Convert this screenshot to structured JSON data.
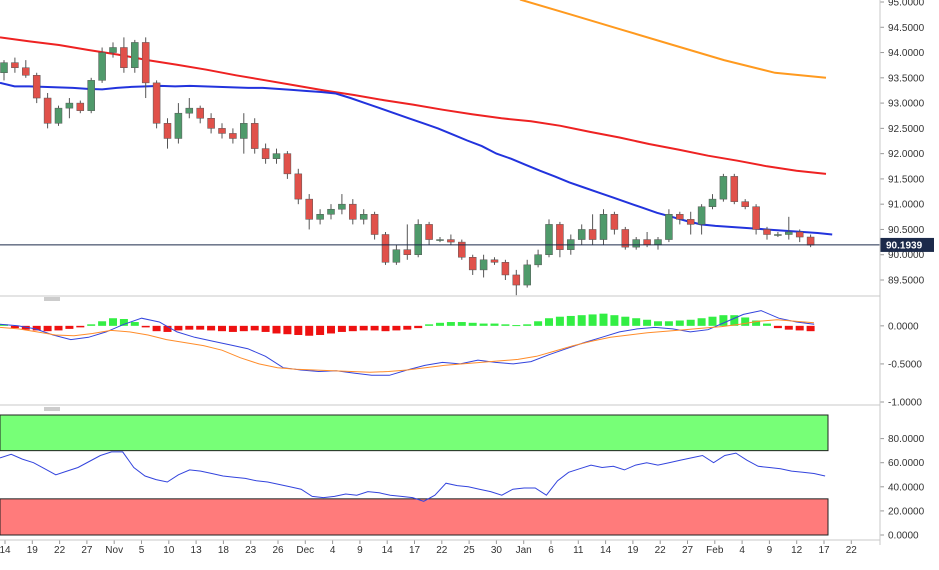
{
  "chart_data": [
    {
      "type": "candlestick",
      "name": "price",
      "ylim": [
        89.1,
        95.0
      ],
      "yticks": [
        "95.0000",
        "94.5000",
        "94.0000",
        "93.5000",
        "93.0000",
        "92.5000",
        "92.0000",
        "91.5000",
        "91.0000",
        "90.5000",
        "90.0000",
        "89.5000"
      ],
      "ytick_values": [
        95.0,
        94.5,
        94.0,
        93.5,
        93.0,
        92.5,
        92.0,
        91.5,
        91.0,
        90.5,
        90.0,
        89.5
      ],
      "current_price": 90.1939,
      "current_price_label": "90.1939",
      "candles": [
        [
          93.6,
          93.85,
          93.45,
          93.8
        ],
        [
          93.8,
          93.9,
          93.6,
          93.7
        ],
        [
          93.7,
          93.85,
          93.5,
          93.55
        ],
        [
          93.55,
          93.6,
          93.0,
          93.1
        ],
        [
          93.1,
          93.2,
          92.5,
          92.6
        ],
        [
          92.6,
          92.95,
          92.55,
          92.9
        ],
        [
          92.9,
          93.1,
          92.7,
          93.0
        ],
        [
          93.0,
          93.05,
          92.8,
          92.85
        ],
        [
          92.85,
          93.5,
          92.8,
          93.45
        ],
        [
          93.45,
          94.1,
          93.4,
          94.0
        ],
        [
          94.0,
          94.2,
          93.9,
          94.1
        ],
        [
          94.1,
          94.3,
          93.6,
          93.7
        ],
        [
          93.7,
          94.25,
          93.6,
          94.2
        ],
        [
          94.2,
          94.3,
          93.1,
          93.4
        ],
        [
          93.4,
          93.45,
          92.5,
          92.6
        ],
        [
          92.6,
          92.7,
          92.1,
          92.3
        ],
        [
          92.3,
          93.0,
          92.2,
          92.8
        ],
        [
          92.8,
          93.1,
          92.7,
          92.9
        ],
        [
          92.9,
          92.95,
          92.6,
          92.7
        ],
        [
          92.7,
          92.8,
          92.4,
          92.5
        ],
        [
          92.5,
          92.6,
          92.3,
          92.4
        ],
        [
          92.4,
          92.5,
          92.2,
          92.3
        ],
        [
          92.3,
          92.8,
          92.0,
          92.6
        ],
        [
          92.6,
          92.7,
          92.0,
          92.1
        ],
        [
          92.1,
          92.2,
          91.8,
          91.9
        ],
        [
          91.9,
          92.1,
          91.8,
          92.0
        ],
        [
          92.0,
          92.05,
          91.5,
          91.6
        ],
        [
          91.6,
          91.7,
          91.0,
          91.1
        ],
        [
          91.1,
          91.2,
          90.5,
          90.7
        ],
        [
          90.7,
          90.9,
          90.6,
          90.8
        ],
        [
          90.8,
          91.0,
          90.7,
          90.9
        ],
        [
          90.9,
          91.2,
          90.8,
          91.0
        ],
        [
          91.0,
          91.1,
          90.6,
          90.7
        ],
        [
          90.7,
          90.9,
          90.6,
          90.8
        ],
        [
          90.8,
          90.85,
          90.3,
          90.4
        ],
        [
          90.4,
          90.45,
          89.8,
          89.85
        ],
        [
          89.85,
          90.2,
          89.8,
          90.1
        ],
        [
          90.1,
          90.6,
          89.9,
          90.0
        ],
        [
          90.0,
          90.7,
          89.95,
          90.6
        ],
        [
          90.6,
          90.65,
          90.2,
          90.3
        ],
        [
          90.3,
          90.35,
          90.25,
          90.3
        ],
        [
          90.3,
          90.4,
          90.2,
          90.25
        ],
        [
          90.25,
          90.3,
          89.9,
          89.95
        ],
        [
          89.95,
          90.0,
          89.6,
          89.7
        ],
        [
          89.7,
          90.0,
          89.55,
          89.9
        ],
        [
          89.9,
          89.95,
          89.8,
          89.85
        ],
        [
          89.85,
          89.9,
          89.5,
          89.6
        ],
        [
          89.6,
          89.7,
          89.2,
          89.4
        ],
        [
          89.4,
          89.9,
          89.35,
          89.8
        ],
        [
          89.8,
          90.1,
          89.75,
          90.0
        ],
        [
          90.0,
          90.7,
          89.95,
          90.6
        ],
        [
          90.6,
          90.65,
          89.95,
          90.1
        ],
        [
          90.1,
          90.4,
          90.0,
          90.3
        ],
        [
          90.3,
          90.6,
          90.2,
          90.5
        ],
        [
          90.5,
          90.8,
          90.2,
          90.3
        ],
        [
          90.3,
          90.9,
          90.2,
          90.8
        ],
        [
          90.8,
          90.85,
          90.4,
          90.5
        ],
        [
          90.5,
          90.55,
          90.1,
          90.15
        ],
        [
          90.15,
          90.35,
          90.1,
          90.3
        ],
        [
          90.3,
          90.45,
          90.15,
          90.2
        ],
        [
          90.2,
          90.35,
          90.1,
          90.3
        ],
        [
          90.3,
          90.9,
          90.25,
          90.8
        ],
        [
          90.8,
          90.85,
          90.6,
          90.7
        ],
        [
          90.7,
          90.85,
          90.4,
          90.6
        ],
        [
          90.6,
          91.0,
          90.4,
          90.95
        ],
        [
          90.95,
          91.2,
          90.9,
          91.1
        ],
        [
          91.1,
          91.6,
          91.05,
          91.55
        ],
        [
          91.55,
          91.6,
          91.0,
          91.05
        ],
        [
          91.05,
          91.1,
          90.9,
          90.95
        ],
        [
          90.95,
          91.0,
          90.4,
          90.5
        ],
        [
          90.5,
          90.55,
          90.3,
          90.4
        ],
        [
          90.4,
          90.45,
          90.35,
          90.4
        ],
        [
          90.4,
          90.75,
          90.3,
          90.45
        ],
        [
          90.45,
          90.5,
          90.25,
          90.35
        ],
        [
          90.35,
          90.4,
          90.15,
          90.19
        ]
      ],
      "sma50": [
        93.4,
        93.33,
        93.33,
        93.32,
        93.31,
        93.3,
        93.28,
        93.27,
        93.3,
        93.32,
        93.33,
        93.34,
        93.33,
        93.34,
        93.33,
        93.32,
        93.31,
        93.3,
        93.3,
        93.28,
        93.26,
        93.24,
        93.22,
        93.19,
        93.1,
        93.0,
        92.9,
        92.8,
        92.7,
        92.6,
        92.5,
        92.38,
        92.26,
        92.15,
        92.0,
        91.9,
        91.78,
        91.66,
        91.55,
        91.43,
        91.33,
        91.23,
        91.13,
        91.03,
        90.93,
        90.83,
        90.75,
        90.67,
        90.6,
        90.57,
        90.55,
        90.53,
        90.51,
        90.49,
        90.47,
        90.45,
        90.43,
        90.4
      ],
      "sma100": [
        94.3,
        94.22,
        94.15,
        94.05,
        93.96,
        93.85,
        93.76,
        93.66,
        93.55,
        93.45,
        93.35,
        93.25,
        93.16,
        93.06,
        92.97,
        92.87,
        92.78,
        92.7,
        92.64,
        92.55,
        92.43,
        92.32,
        92.19,
        92.08,
        91.96,
        91.86,
        91.75,
        91.66,
        91.6
      ],
      "sma200": [
        95.05,
        94.75,
        94.45,
        94.15,
        93.85,
        93.6,
        93.5
      ]
    },
    {
      "type": "histogram+lines",
      "name": "macd",
      "ylim": [
        -1.0,
        0.3
      ],
      "yticks": [
        "0.0000",
        "-0.5000",
        "-1.0000"
      ],
      "ytick_values": [
        0.0,
        -0.5,
        -1.0
      ],
      "histogram": [
        0.02,
        -0.03,
        -0.05,
        -0.06,
        -0.07,
        -0.06,
        -0.04,
        -0.02,
        0.02,
        0.06,
        0.1,
        0.09,
        0.05,
        -0.02,
        -0.07,
        -0.08,
        -0.06,
        -0.05,
        -0.05,
        -0.06,
        -0.07,
        -0.08,
        -0.07,
        -0.06,
        -0.08,
        -0.1,
        -0.11,
        -0.12,
        -0.13,
        -0.12,
        -0.1,
        -0.08,
        -0.07,
        -0.06,
        -0.06,
        -0.07,
        -0.06,
        -0.05,
        -0.03,
        0.02,
        0.04,
        0.05,
        0.05,
        0.04,
        0.03,
        0.03,
        0.02,
        0.01,
        0.02,
        0.06,
        0.1,
        0.12,
        0.13,
        0.14,
        0.15,
        0.16,
        0.14,
        0.12,
        0.1,
        0.08,
        0.06,
        0.06,
        0.07,
        0.08,
        0.1,
        0.12,
        0.14,
        0.14,
        0.11,
        0.07,
        0.03,
        -0.03,
        -0.05,
        -0.06,
        -0.07
      ],
      "macd": [
        0.02,
        0.0,
        -0.04,
        -0.12,
        -0.18,
        -0.15,
        -0.08,
        0.02,
        0.1,
        0.05,
        -0.08,
        -0.15,
        -0.2,
        -0.25,
        -0.3,
        -0.4,
        -0.55,
        -0.58,
        -0.6,
        -0.59,
        -0.62,
        -0.65,
        -0.65,
        -0.58,
        -0.52,
        -0.48,
        -0.5,
        -0.45,
        -0.48,
        -0.5,
        -0.47,
        -0.38,
        -0.3,
        -0.22,
        -0.15,
        -0.08,
        -0.04,
        -0.02,
        -0.04,
        -0.08,
        -0.05,
        0.05,
        0.15,
        0.2,
        0.1,
        0.05,
        0.02
      ],
      "signal": [
        -0.02,
        -0.04,
        -0.08,
        -0.12,
        -0.13,
        -0.1,
        -0.06,
        -0.08,
        -0.12,
        -0.18,
        -0.22,
        -0.26,
        -0.32,
        -0.42,
        -0.5,
        -0.55,
        -0.57,
        -0.58,
        -0.59,
        -0.6,
        -0.61,
        -0.6,
        -0.58,
        -0.55,
        -0.52,
        -0.5,
        -0.48,
        -0.46,
        -0.44,
        -0.4,
        -0.33,
        -0.26,
        -0.2,
        -0.15,
        -0.12,
        -0.09,
        -0.07,
        -0.05,
        -0.03,
        -0.01,
        0.02,
        0.06,
        0.08,
        0.06,
        0.04
      ]
    },
    {
      "type": "line",
      "name": "rsi",
      "ylim": [
        0.0,
        100.0
      ],
      "yticks": [
        "80.0000",
        "60.0000",
        "40.0000",
        "20.0000",
        "0.0000"
      ],
      "ytick_values": [
        80,
        60,
        40,
        20,
        0
      ],
      "overbought": 70,
      "oversold": 30,
      "values": [
        64,
        67,
        63,
        60,
        55,
        50,
        53,
        56,
        61,
        66,
        69,
        69,
        56,
        49,
        46,
        44,
        50,
        54,
        53,
        51,
        49,
        48,
        47,
        45,
        44,
        42,
        40,
        38,
        32,
        31,
        32,
        34,
        33,
        36,
        35,
        33,
        32,
        31,
        28,
        33,
        43,
        41,
        40,
        38,
        36,
        33,
        38,
        39,
        39,
        33,
        45,
        52,
        55,
        58,
        56,
        57,
        54,
        58,
        60,
        58,
        60,
        62,
        64,
        66,
        60,
        66,
        68,
        62,
        57,
        56,
        55,
        53,
        52,
        51,
        49
      ]
    }
  ],
  "x_axis": {
    "labels": [
      "14",
      "19",
      "22",
      "27",
      "Nov",
      "5",
      "10",
      "13",
      "18",
      "23",
      "26",
      "Dec",
      "4",
      "9",
      "14",
      "17",
      "22",
      "25",
      "30",
      "Jan",
      "6",
      "11",
      "14",
      "19",
      "22",
      "27",
      "Feb",
      "4",
      "9",
      "12",
      "17",
      "22"
    ]
  }
}
